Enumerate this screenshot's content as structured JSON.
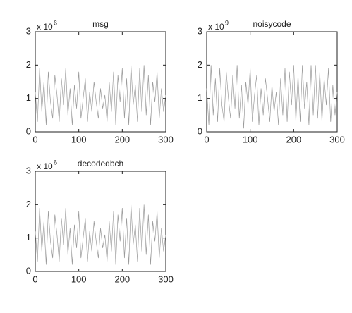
{
  "chart_data": [
    {
      "type": "line",
      "title": "msg",
      "yscale_label": "x 10",
      "yscale_exponent": "6",
      "x": [
        0,
        5,
        10,
        15,
        20,
        25,
        30,
        35,
        40,
        45,
        50,
        55,
        60,
        65,
        70,
        75,
        80,
        85,
        90,
        95,
        100,
        105,
        110,
        115,
        120,
        125,
        130,
        135,
        140,
        145,
        150,
        155,
        160,
        165,
        170,
        175,
        180,
        185,
        190,
        195,
        200,
        205,
        210,
        215,
        220,
        225,
        230,
        235,
        240,
        245,
        250,
        255,
        260,
        265,
        270,
        275,
        280,
        285,
        290,
        295,
        300
      ],
      "series": [
        {
          "color": "#9a9a9a",
          "values": [
            1.2,
            0.3,
            1.9,
            0.6,
            1.5,
            0.2,
            1.8,
            0.9,
            0.4,
            1.7,
            1.1,
            0.3,
            1.6,
            0.8,
            1.9,
            0.5,
            1.3,
            0.2,
            1.4,
            0.7,
            1.8,
            0.4,
            1.0,
            1.6,
            0.3,
            1.2,
            0.6,
            1.5,
            0.9,
            0.4,
            1.3,
            0.7,
            1.1,
            0.3,
            1.5,
            0.6,
            1.8,
            0.2,
            1.7,
            0.9,
            1.9,
            0.4,
            1.6,
            0.2,
            2.0,
            0.8,
            1.4,
            0.3,
            1.9,
            0.6,
            2.0,
            0.5,
            1.7,
            0.2,
            1.5,
            0.9,
            1.8,
            0.4,
            1.3,
            0.6,
            1.1
          ]
        }
      ],
      "xlim": [
        0,
        300
      ],
      "ylim": [
        0,
        3
      ],
      "xticks": [
        0,
        100,
        200,
        300
      ],
      "yticks": [
        0,
        1,
        2,
        3
      ]
    },
    {
      "type": "line",
      "title": "noisycode",
      "yscale_label": "x 10",
      "yscale_exponent": "9",
      "x": [
        0,
        5,
        10,
        15,
        20,
        25,
        30,
        35,
        40,
        45,
        50,
        55,
        60,
        65,
        70,
        75,
        80,
        85,
        90,
        95,
        100,
        105,
        110,
        115,
        120,
        125,
        130,
        135,
        140,
        145,
        150,
        155,
        160,
        165,
        170,
        175,
        180,
        185,
        190,
        195,
        200,
        205,
        210,
        215,
        220,
        225,
        230,
        235,
        240,
        245,
        250,
        255,
        260,
        265,
        270,
        275,
        280,
        285,
        290,
        295,
        300
      ],
      "series": [
        {
          "color": "#9a9a9a",
          "values": [
            1.3,
            0.2,
            2.0,
            0.5,
            1.6,
            0.3,
            1.9,
            0.8,
            0.3,
            1.8,
            1.0,
            0.4,
            1.7,
            0.7,
            2.0,
            0.4,
            1.4,
            0.1,
            1.5,
            0.8,
            1.9,
            0.3,
            1.1,
            1.7,
            0.2,
            1.3,
            0.5,
            1.6,
            1.0,
            0.3,
            1.4,
            0.6,
            1.2,
            0.2,
            1.6,
            0.5,
            1.9,
            0.3,
            1.8,
            0.8,
            2.0,
            0.3,
            1.7,
            0.3,
            2.0,
            0.7,
            1.5,
            0.2,
            2.0,
            0.5,
            2.0,
            0.4,
            1.8,
            0.3,
            1.6,
            0.8,
            1.9,
            0.3,
            1.4,
            0.5,
            1.2
          ]
        }
      ],
      "xlim": [
        0,
        300
      ],
      "ylim": [
        0,
        3
      ],
      "xticks": [
        0,
        100,
        200,
        300
      ],
      "yticks": [
        0,
        1,
        2,
        3
      ]
    },
    {
      "type": "line",
      "title": "decodedbch",
      "yscale_label": "x 10",
      "yscale_exponent": "6",
      "x": [
        0,
        5,
        10,
        15,
        20,
        25,
        30,
        35,
        40,
        45,
        50,
        55,
        60,
        65,
        70,
        75,
        80,
        85,
        90,
        95,
        100,
        105,
        110,
        115,
        120,
        125,
        130,
        135,
        140,
        145,
        150,
        155,
        160,
        165,
        170,
        175,
        180,
        185,
        190,
        195,
        200,
        205,
        210,
        215,
        220,
        225,
        230,
        235,
        240,
        245,
        250,
        255,
        260,
        265,
        270,
        275,
        280,
        285,
        290,
        295,
        300
      ],
      "series": [
        {
          "color": "#9a9a9a",
          "values": [
            1.2,
            0.3,
            1.9,
            0.6,
            1.5,
            0.2,
            1.8,
            0.9,
            0.4,
            1.7,
            1.1,
            0.3,
            1.6,
            0.8,
            1.9,
            0.5,
            1.3,
            0.2,
            1.4,
            0.7,
            1.8,
            0.4,
            1.0,
            1.6,
            0.3,
            1.2,
            0.6,
            1.5,
            0.9,
            0.4,
            1.3,
            0.7,
            1.1,
            0.3,
            1.5,
            0.6,
            1.8,
            0.2,
            1.7,
            0.9,
            1.9,
            0.4,
            1.6,
            0.2,
            2.0,
            0.8,
            1.4,
            0.3,
            1.9,
            0.6,
            2.0,
            0.5,
            1.7,
            0.2,
            1.5,
            0.9,
            1.8,
            0.4,
            1.3,
            0.6,
            1.1
          ]
        }
      ],
      "xlim": [
        0,
        300
      ],
      "ylim": [
        0,
        3
      ],
      "xticks": [
        0,
        100,
        200,
        300
      ],
      "yticks": [
        0,
        1,
        2,
        3
      ]
    }
  ]
}
